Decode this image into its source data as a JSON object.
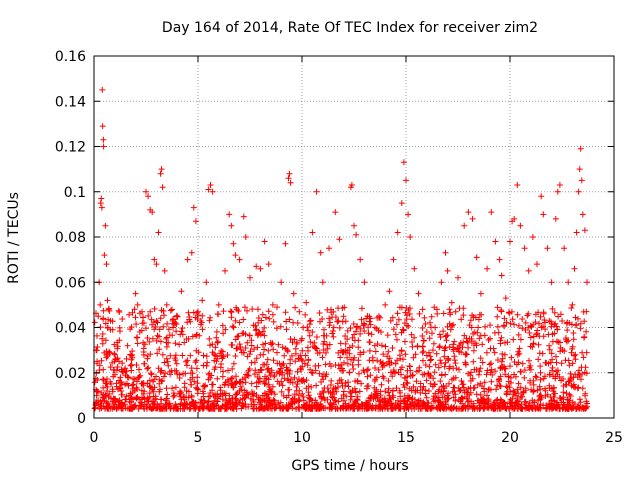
{
  "chart_data": {
    "type": "scatter",
    "title": "Day 164 of 2014, Rate Of TEC Index for receiver zim2",
    "xlabel": "GPS time / hours",
    "ylabel": "ROTI / TECUs",
    "xlim": [
      0,
      25
    ],
    "ylim": [
      0,
      0.16
    ],
    "x_ticks": [
      0,
      5,
      10,
      15,
      20,
      25
    ],
    "x_tick_labels": [
      "0",
      "5",
      "10",
      "15",
      "20",
      "25"
    ],
    "y_ticks": [
      0,
      0.02,
      0.04,
      0.06,
      0.08,
      0.1,
      0.12,
      0.14,
      0.16
    ],
    "y_tick_labels": [
      "0",
      "0.02",
      "0.04",
      "0.06",
      "0.08",
      "0.1",
      "0.12",
      "0.14",
      "0.16"
    ],
    "grid": true,
    "marker": "plus",
    "color": "#ff0000",
    "series": [
      {
        "name": "ROTI",
        "points": [
          [
            0.1,
            0.03
          ],
          [
            0.15,
            0.025
          ],
          [
            0.2,
            0.045
          ],
          [
            0.25,
            0.06
          ],
          [
            0.3,
            0.05
          ],
          [
            0.32,
            0.095
          ],
          [
            0.35,
            0.097
          ],
          [
            0.38,
            0.093
          ],
          [
            0.4,
            0.145
          ],
          [
            0.42,
            0.129
          ],
          [
            0.45,
            0.123
          ],
          [
            0.46,
            0.12
          ],
          [
            0.5,
            0.072
          ],
          [
            0.55,
            0.085
          ],
          [
            0.6,
            0.068
          ],
          [
            0.65,
            0.052
          ],
          [
            0.7,
            0.048
          ],
          [
            0.8,
            0.043
          ],
          [
            0.9,
            0.039
          ],
          [
            1.0,
            0.028
          ],
          [
            1.2,
            0.025
          ],
          [
            1.5,
            0.022
          ],
          [
            1.8,
            0.021
          ],
          [
            2.0,
            0.055
          ],
          [
            2.1,
            0.05
          ],
          [
            2.2,
            0.038
          ],
          [
            2.4,
            0.042
          ],
          [
            2.5,
            0.1
          ],
          [
            2.6,
            0.098
          ],
          [
            2.7,
            0.092
          ],
          [
            2.8,
            0.091
          ],
          [
            2.9,
            0.07
          ],
          [
            3.0,
            0.068
          ],
          [
            3.1,
            0.082
          ],
          [
            3.2,
            0.108
          ],
          [
            3.25,
            0.11
          ],
          [
            3.3,
            0.102
          ],
          [
            3.4,
            0.065
          ],
          [
            3.5,
            0.05
          ],
          [
            3.8,
            0.04
          ],
          [
            4.2,
            0.056
          ],
          [
            4.5,
            0.07
          ],
          [
            4.7,
            0.073
          ],
          [
            4.8,
            0.093
          ],
          [
            4.9,
            0.087
          ],
          [
            5.0,
            0.047
          ],
          [
            5.2,
            0.052
          ],
          [
            5.4,
            0.06
          ],
          [
            5.5,
            0.101
          ],
          [
            5.6,
            0.103
          ],
          [
            5.7,
            0.1
          ],
          [
            6.0,
            0.05
          ],
          [
            6.3,
            0.065
          ],
          [
            6.5,
            0.09
          ],
          [
            6.6,
            0.085
          ],
          [
            6.7,
            0.077
          ],
          [
            6.8,
            0.072
          ],
          [
            7.0,
            0.07
          ],
          [
            7.2,
            0.089
          ],
          [
            7.3,
            0.08
          ],
          [
            7.5,
            0.062
          ],
          [
            7.8,
            0.067
          ],
          [
            8.0,
            0.066
          ],
          [
            8.2,
            0.078
          ],
          [
            8.4,
            0.068
          ],
          [
            8.6,
            0.05
          ],
          [
            8.8,
            0.049
          ],
          [
            9.0,
            0.06
          ],
          [
            9.2,
            0.077
          ],
          [
            9.35,
            0.106
          ],
          [
            9.4,
            0.108
          ],
          [
            9.45,
            0.104
          ],
          [
            9.6,
            0.055
          ],
          [
            9.8,
            0.042
          ],
          [
            10.0,
            0.035
          ],
          [
            10.2,
            0.051
          ],
          [
            10.5,
            0.082
          ],
          [
            10.7,
            0.1
          ],
          [
            10.9,
            0.073
          ],
          [
            11.0,
            0.06
          ],
          [
            11.3,
            0.075
          ],
          [
            11.6,
            0.091
          ],
          [
            11.8,
            0.079
          ],
          [
            12.0,
            0.045
          ],
          [
            12.2,
            0.03
          ],
          [
            12.35,
            0.102
          ],
          [
            12.4,
            0.103
          ],
          [
            12.5,
            0.085
          ],
          [
            12.6,
            0.081
          ],
          [
            12.8,
            0.07
          ],
          [
            13.0,
            0.06
          ],
          [
            13.3,
            0.044
          ],
          [
            13.5,
            0.032
          ],
          [
            13.8,
            0.038
          ],
          [
            14.0,
            0.05
          ],
          [
            14.2,
            0.056
          ],
          [
            14.4,
            0.07
          ],
          [
            14.6,
            0.082
          ],
          [
            14.8,
            0.095
          ],
          [
            14.9,
            0.113
          ],
          [
            15.0,
            0.105
          ],
          [
            15.1,
            0.09
          ],
          [
            15.2,
            0.08
          ],
          [
            15.4,
            0.066
          ],
          [
            15.6,
            0.055
          ],
          [
            15.8,
            0.048
          ],
          [
            16.0,
            0.038
          ],
          [
            16.3,
            0.03
          ],
          [
            16.5,
            0.046
          ],
          [
            16.7,
            0.06
          ],
          [
            16.9,
            0.073
          ],
          [
            17.0,
            0.065
          ],
          [
            17.2,
            0.051
          ],
          [
            17.5,
            0.062
          ],
          [
            17.8,
            0.085
          ],
          [
            18.0,
            0.091
          ],
          [
            18.2,
            0.088
          ],
          [
            18.4,
            0.071
          ],
          [
            18.6,
            0.055
          ],
          [
            18.9,
            0.066
          ],
          [
            19.1,
            0.091
          ],
          [
            19.3,
            0.078
          ],
          [
            19.5,
            0.07
          ],
          [
            19.6,
            0.063
          ],
          [
            19.8,
            0.053
          ],
          [
            20.0,
            0.078
          ],
          [
            20.1,
            0.087
          ],
          [
            20.2,
            0.088
          ],
          [
            20.35,
            0.103
          ],
          [
            20.5,
            0.085
          ],
          [
            20.7,
            0.075
          ],
          [
            20.9,
            0.065
          ],
          [
            21.1,
            0.08
          ],
          [
            21.3,
            0.068
          ],
          [
            21.5,
            0.098
          ],
          [
            21.6,
            0.09
          ],
          [
            21.8,
            0.075
          ],
          [
            22.0,
            0.06
          ],
          [
            22.2,
            0.088
          ],
          [
            22.3,
            0.1
          ],
          [
            22.4,
            0.103
          ],
          [
            22.6,
            0.075
          ],
          [
            22.8,
            0.06
          ],
          [
            23.0,
            0.05
          ],
          [
            23.1,
            0.066
          ],
          [
            23.2,
            0.082
          ],
          [
            23.3,
            0.1
          ],
          [
            23.35,
            0.11
          ],
          [
            23.4,
            0.119
          ],
          [
            23.45,
            0.105
          ],
          [
            23.5,
            0.09
          ],
          [
            23.6,
            0.083
          ],
          [
            23.7,
            0.06
          ]
        ]
      }
    ]
  }
}
